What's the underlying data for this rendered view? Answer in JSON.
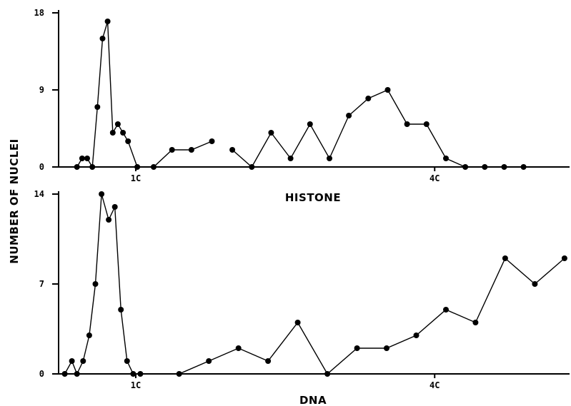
{
  "colors": {
    "ink": "#000000",
    "background": "#ffffff"
  },
  "chart_data": [
    {
      "type": "line",
      "panel": "top",
      "title": "",
      "xlabel": "HISTONE",
      "ylabel": "NUMBER OF NUCLEI",
      "ylim": [
        0,
        18
      ],
      "yticks": [
        0,
        9,
        18
      ],
      "xlim": [
        0,
        100
      ],
      "xticks": [
        {
          "x": 15.1,
          "label": "1C"
        },
        {
          "x": 73.6,
          "label": "4C"
        }
      ],
      "grid": false,
      "series": [
        {
          "x": [
            3.6,
            4.6,
            5.6,
            6.6,
            7.6,
            8.6,
            9.6,
            10.6,
            11.6,
            12.6,
            13.6,
            15.4,
            18.6,
            22.2,
            26.0,
            30.0
          ],
          "y": [
            0,
            1,
            1,
            0,
            7,
            15,
            17,
            4,
            5,
            4,
            3,
            0,
            0,
            2,
            2,
            3
          ]
        },
        {
          "x": [
            34.0,
            37.8,
            41.6,
            45.4,
            49.2,
            53.0,
            56.8,
            60.6,
            64.4,
            68.2,
            72.0,
            75.8,
            79.6,
            83.4,
            87.2,
            91.0
          ],
          "y": [
            2,
            0,
            4,
            1,
            5,
            1,
            6,
            8,
            9,
            5,
            5,
            1,
            0,
            0,
            0,
            0
          ]
        }
      ]
    },
    {
      "type": "line",
      "panel": "bottom",
      "title": "",
      "xlabel": "DNA",
      "ylabel": "NUMBER OF NUCLEI",
      "ylim": [
        0,
        14
      ],
      "yticks": [
        0,
        7,
        14
      ],
      "xlim": [
        0,
        100
      ],
      "xticks": [
        {
          "x": 15.1,
          "label": "1C"
        },
        {
          "x": 73.6,
          "label": "4C"
        }
      ],
      "grid": false,
      "series": [
        {
          "x": [
            1.2,
            2.6,
            3.6,
            4.8,
            6.0,
            7.2,
            8.4,
            9.8,
            11.0,
            12.2,
            13.4,
            14.6,
            16.0
          ],
          "y": [
            0,
            1,
            0,
            1,
            3,
            7,
            14,
            12,
            13,
            5,
            1,
            0,
            0
          ]
        },
        {
          "x": [
            23.6,
            29.4,
            35.2,
            41.0,
            46.8,
            52.6,
            58.4,
            64.2,
            70.0,
            75.8,
            81.6,
            87.4,
            93.2,
            99.0
          ],
          "y": [
            0,
            1,
            2,
            1,
            4,
            0,
            2,
            2,
            3,
            5,
            4,
            9,
            7,
            9
          ]
        }
      ]
    }
  ]
}
